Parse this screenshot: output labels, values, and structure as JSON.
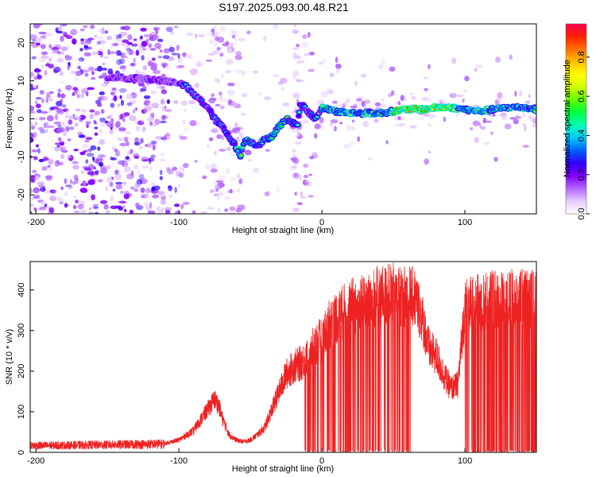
{
  "title": "S197.2025.093.00.48.R21",
  "chart_data": [
    {
      "type": "heatmap",
      "name": "spectrogram",
      "xlabel": "Height of straight line (km)",
      "ylabel": "Frequency (Hz)",
      "xlim": [
        -204,
        150
      ],
      "ylim": [
        -25,
        25
      ],
      "xticks": [
        -200,
        -100,
        0,
        100
      ],
      "yticks": [
        -20,
        -10,
        0,
        10,
        20
      ],
      "ridge": {
        "x": [
          -150,
          -125,
          -110,
          -100,
          -95,
          -90,
          -85,
          -80,
          -75,
          -70,
          -65,
          -60,
          -57,
          -54,
          -50,
          -45,
          -40,
          -35,
          -30,
          -25,
          -20,
          -17,
          -15,
          -10,
          -5,
          0,
          10,
          20,
          30,
          40,
          50,
          60,
          70,
          80,
          90,
          100,
          110,
          120,
          130,
          140,
          150
        ],
        "y": [
          11,
          10.5,
          10,
          9.5,
          8.5,
          6.5,
          5,
          3,
          0,
          -2,
          -4.5,
          -7.5,
          -10,
          -5.5,
          -6,
          -7,
          -5.5,
          -4.5,
          -2,
          0,
          -1,
          -1.5,
          4,
          2,
          0,
          3,
          2,
          1.5,
          1.5,
          1.5,
          2,
          2.5,
          2.5,
          3,
          3,
          2.5,
          2,
          2.5,
          3,
          3,
          2.5
        ]
      },
      "colorbar": {
        "label": "Normalized spectral amplitude",
        "ticks": [
          0.0,
          0.2,
          0.4,
          0.6,
          0.8
        ],
        "range": [
          0,
          0.97
        ],
        "colors": [
          "#ffffff",
          "#e6ccff",
          "#b366ff",
          "#8000ff",
          "#3000ff",
          "#0060ff",
          "#00c8ff",
          "#00ffb0",
          "#00ff40",
          "#60ff00",
          "#d0ff00",
          "#ffff00",
          "#ffc000",
          "#ff7000",
          "#ff2000",
          "#ff0050"
        ]
      }
    },
    {
      "type": "line",
      "name": "snr",
      "xlabel": "Height of straight line (km)",
      "ylabel": "SNR (10 * v/v)",
      "xlim": [
        -204,
        150
      ],
      "ylim": [
        0,
        470
      ],
      "xticks": [
        -200,
        -100,
        0,
        100
      ],
      "yticks": [
        0,
        100,
        200,
        300,
        400
      ],
      "color": "#ee2222",
      "envelope": {
        "x": [
          -204,
          -160,
          -110,
          -100,
          -90,
          -85,
          -80,
          -75,
          -72,
          -70,
          -65,
          -60,
          -55,
          -50,
          -45,
          -40,
          -35,
          -30,
          -25,
          -20,
          -15,
          -10,
          -5,
          0,
          5,
          10,
          20,
          30,
          40,
          50,
          60,
          65,
          70,
          75,
          80,
          85,
          90,
          95,
          100,
          110,
          120,
          130,
          140,
          150
        ],
        "y": [
          20,
          22,
          25,
          35,
          60,
          90,
          120,
          150,
          130,
          100,
          50,
          35,
          30,
          35,
          50,
          70,
          120,
          170,
          220,
          240,
          250,
          270,
          300,
          320,
          360,
          380,
          410,
          420,
          440,
          445,
          440,
          435,
          380,
          290,
          270,
          220,
          180,
          190,
          410,
          420,
          430,
          430,
          435,
          430
        ]
      }
    }
  ]
}
